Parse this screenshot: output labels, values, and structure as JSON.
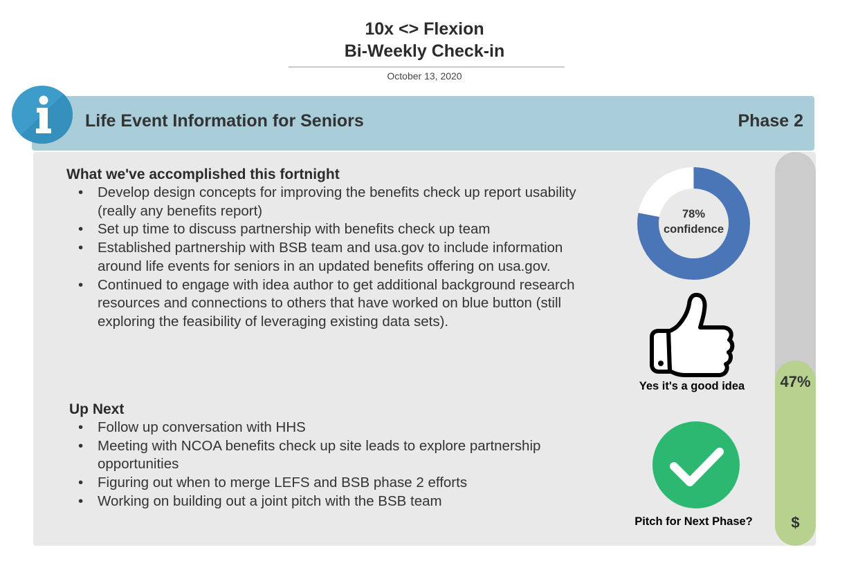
{
  "header": {
    "title_line1": "10x <> Flexion",
    "title_line2": "Bi-Weekly Check-in",
    "date": "October 13, 2020"
  },
  "banner": {
    "icon": "info-icon",
    "title": "Life Event Information for Seniors",
    "phase": "Phase 2"
  },
  "accomplished": {
    "heading": "What we've accomplished this fortnight",
    "items": [
      "Develop design concepts for improving the benefits check up report usability (really any benefits report)",
      "Set up time to discuss partnership with benefits check up team",
      "Established partnership with BSB team and usa.gov to include information around life events for seniors in an updated benefits offering on usa.gov.",
      "Continued to engage with idea author to get additional background research resources and connections to others that have worked on blue button (still exploring the feasibility of leveraging existing data sets)."
    ]
  },
  "up_next": {
    "heading": "Up Next",
    "items": [
      "Follow up conversation with HHS",
      "Meeting with NCOA benefits check up site leads to explore partnership opportunities",
      "Figuring out when to merge LEFS and BSB phase 2 efforts",
      "Working on building out a joint pitch with the BSB team"
    ]
  },
  "confidence": {
    "value": 78,
    "percent_label": "78%",
    "label": "confidence",
    "color": "#4a76b8",
    "track_color": "#ffffff"
  },
  "good_idea": {
    "icon": "thumbs-up-icon",
    "caption": "Yes it's a good idea"
  },
  "pitch": {
    "icon": "checkmark-circle-icon",
    "caption": "Pitch for Next Phase?",
    "color": "#2db872"
  },
  "progress": {
    "value": 47,
    "label": "47%",
    "funding_symbol": "$",
    "fill_color": "#b6d28e",
    "track_color": "#cccccc"
  }
}
